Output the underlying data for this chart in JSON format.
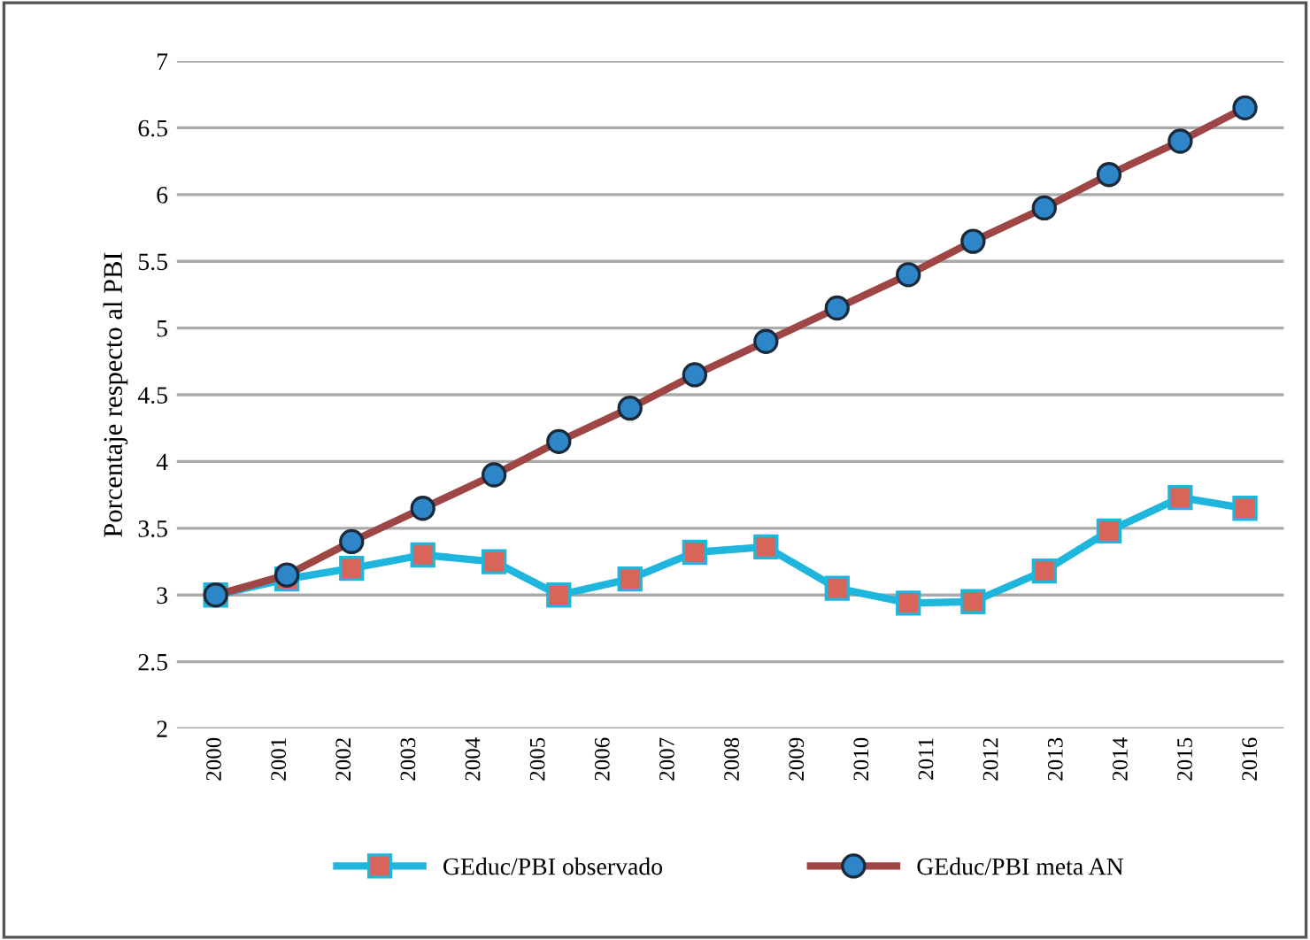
{
  "chart_data": {
    "type": "line",
    "ylabel": "Porcentaje respecto al PBI",
    "x": [
      2000,
      2001.1,
      2002.1,
      2003.2,
      2004.3,
      2005.3,
      2006.4,
      2007.4,
      2008.5,
      2009.6,
      2010.7,
      2011.7,
      2012.8,
      2013.8,
      2014.9,
      2015.9
    ],
    "series": [
      {
        "name": "GEduc/PBI observado",
        "color": "#1fb6de",
        "marker": "square",
        "values": [
          3.0,
          3.12,
          3.2,
          3.3,
          3.25,
          3.0,
          3.12,
          3.32,
          3.36,
          3.05,
          2.94,
          2.95,
          3.18,
          3.48,
          3.73,
          3.65
        ]
      },
      {
        "name": "GEduc/PBI meta AN",
        "color": "#9e4646",
        "marker": "circle",
        "values": [
          3.0,
          3.15,
          3.4,
          3.65,
          3.9,
          4.15,
          4.4,
          4.65,
          4.9,
          5.15,
          5.4,
          5.65,
          5.9,
          6.15,
          6.4,
          6.65
        ]
      }
    ],
    "xlim": [
      1999.4,
      2016.5
    ],
    "xticks": [
      2000,
      2001,
      2002,
      2003,
      2004,
      2005,
      2006,
      2007,
      2008,
      2009,
      2010,
      2011,
      2012,
      2013,
      2014,
      2015,
      2016
    ],
    "ylim": [
      2,
      7
    ],
    "yticks": [
      2,
      2.5,
      3,
      3.5,
      4,
      4.5,
      5,
      5.5,
      6,
      6.5,
      7
    ],
    "grid": "y",
    "legend": "bottom",
    "line_style": "solid"
  }
}
